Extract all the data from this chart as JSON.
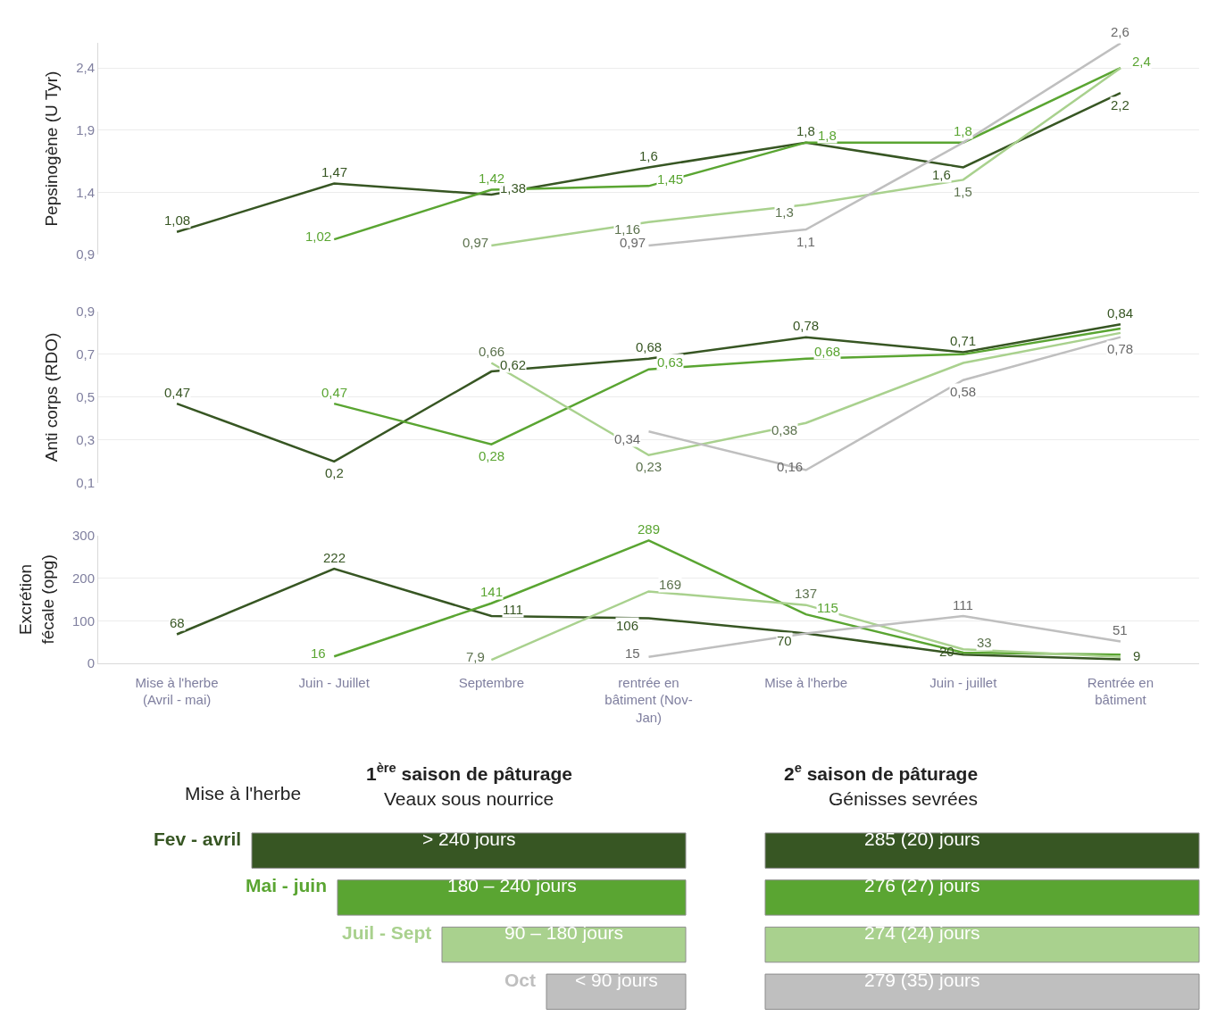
{
  "chart_data": [
    {
      "type": "line",
      "ylabel": "Pepsinogène (U Tyr)",
      "categories": [
        "Mise à l'herbe (Avril - mai)",
        "Juin - Juillet",
        "Septembre",
        "rentrée en bâtiment (Nov-Jan)",
        "Mise à l'herbe",
        "Juin - juillet",
        "Rentrée en bâtiment"
      ],
      "ylim": [
        0.9,
        2.6
      ],
      "yticks": [
        {
          "value": 0.9,
          "label": "0,9"
        },
        {
          "value": 1.4,
          "label": "1,4"
        },
        {
          "value": 1.9,
          "label": "1,9"
        },
        {
          "value": 2.4,
          "label": "2,4"
        }
      ],
      "grid": "y",
      "tick_labels": "y",
      "marker": "none",
      "series": [
        {
          "color": "#375623",
          "values": [
            1.08,
            1.47,
            1.38,
            1.6,
            1.8,
            1.6,
            2.2
          ],
          "value_labels": [
            "1,08",
            "1,47",
            "1,38",
            "1,6",
            "1,8",
            "1,6",
            "2,2"
          ]
        },
        {
          "color": "#5aa532",
          "values": [
            null,
            1.02,
            1.42,
            1.45,
            1.8,
            1.8,
            2.4
          ],
          "value_labels": [
            null,
            "1,02",
            "1,42",
            "1,45",
            "1,8",
            "1,8",
            "2,4"
          ]
        },
        {
          "color": "#a9d18e",
          "values": [
            null,
            null,
            0.97,
            1.16,
            1.3,
            1.5,
            2.4
          ],
          "value_labels": [
            null,
            null,
            "0,97",
            "1,16",
            "1,3",
            "1,5",
            null
          ]
        },
        {
          "color": "#bfbfbf",
          "values": [
            null,
            null,
            null,
            0.97,
            1.1,
            1.8,
            2.6
          ],
          "value_labels": [
            null,
            null,
            null,
            "0,97",
            "1,1",
            null,
            "2,6"
          ]
        }
      ]
    },
    {
      "type": "line",
      "ylabel": "Anti corps (RDO)",
      "categories": [
        "Mise à l'herbe (Avril - mai)",
        "Juin - Juillet",
        "Septembre",
        "rentrée en bâtiment (Nov-Jan)",
        "Mise à l'herbe",
        "Juin - juillet",
        "Rentrée en bâtiment"
      ],
      "ylim": [
        0.1,
        0.9
      ],
      "yticks": [
        {
          "value": 0.1,
          "label": "0,1"
        },
        {
          "value": 0.3,
          "label": "0,3"
        },
        {
          "value": 0.5,
          "label": "0,5"
        },
        {
          "value": 0.7,
          "label": "0,7"
        },
        {
          "value": 0.9,
          "label": "0,9"
        }
      ],
      "grid": "y",
      "tick_labels": "y",
      "marker": "none",
      "series": [
        {
          "color": "#375623",
          "values": [
            0.47,
            0.2,
            0.62,
            0.68,
            0.78,
            0.71,
            0.84
          ],
          "value_labels": [
            "0,47",
            "0,2",
            "0,62",
            "0,68",
            "0,78",
            "0,71",
            "0,84"
          ]
        },
        {
          "color": "#5aa532",
          "values": [
            null,
            0.47,
            0.28,
            0.63,
            0.68,
            0.7,
            0.82
          ],
          "value_labels": [
            null,
            "0,47",
            "0,28",
            "0,63",
            "0,68",
            null,
            null
          ]
        },
        {
          "color": "#a9d18e",
          "values": [
            null,
            null,
            0.66,
            0.23,
            0.38,
            0.66,
            0.8
          ],
          "value_labels": [
            null,
            null,
            "0,66",
            "0,23",
            "0,38",
            null,
            null
          ]
        },
        {
          "color": "#bfbfbf",
          "values": [
            null,
            null,
            null,
            0.34,
            0.16,
            0.58,
            0.78
          ],
          "value_labels": [
            null,
            null,
            null,
            "0,34",
            "0,16",
            "0,58",
            "0,78"
          ]
        }
      ]
    },
    {
      "type": "line",
      "ylabel": "Excrétion fécale (opg)",
      "categories": [
        "Mise à l'herbe (Avril - mai)",
        "Juin - Juillet",
        "Septembre",
        "rentrée en bâtiment (Nov-Jan)",
        "Mise à l'herbe",
        "Juin - juillet",
        "Rentrée en bâtiment"
      ],
      "ylim": [
        0,
        300
      ],
      "yticks": [
        0,
        100,
        200,
        300
      ],
      "grid": "y",
      "marker": "none",
      "legend": "bottom",
      "legend_title": "Mise à l'herbe",
      "series": [
        {
          "name": "Fev - avril",
          "color": "#375623",
          "values": [
            68,
            222,
            111,
            106,
            70,
            20,
            9
          ],
          "value_labels": [
            "68",
            "222",
            "111",
            "106",
            "70",
            "20",
            "9"
          ]
        },
        {
          "name": "Mai - juin",
          "color": "#5aa532",
          "values": [
            null,
            16,
            141,
            289,
            115,
            25,
            20
          ],
          "value_labels": [
            null,
            "16",
            "141",
            "289",
            "115",
            null,
            null
          ]
        },
        {
          "name": "Juil - Sept",
          "color": "#a9d18e",
          "values": [
            null,
            null,
            7.9,
            169,
            137,
            33,
            15
          ],
          "value_labels": [
            null,
            null,
            "7,9",
            "169",
            "137",
            "33",
            null
          ]
        },
        {
          "name": "Oct",
          "color": "#bfbfbf",
          "values": [
            null,
            null,
            null,
            15,
            70,
            111,
            51
          ],
          "value_labels": [
            null,
            null,
            null,
            "15",
            null,
            "111",
            "51"
          ]
        }
      ],
      "annotations": [
        "1$^{ère}$ saison de pâturage",
        "Veaux sous nourrice",
        "2$^{e}$ saison de pâturage",
        "Génisses sevrées",
        "> 240 jours",
        "285 (20) jours",
        "180 – 240 jours",
        "276 (27) jours",
        "90 – 180 jours",
        "274 (24) jours",
        "< 90 jours",
        "279 (35) jours"
      ]
    }
  ]
}
